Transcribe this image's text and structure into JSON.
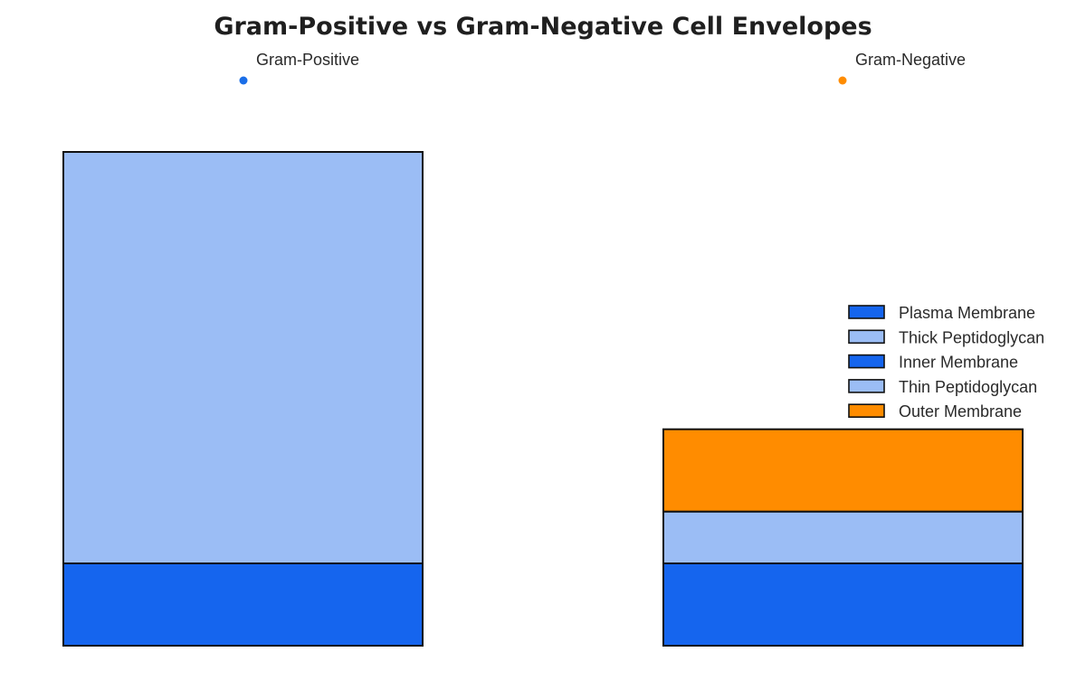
{
  "chart_data": {
    "type": "bar",
    "stacked": true,
    "title": "Gram-Positive vs Gram-Negative Cell Envelopes",
    "xlabel": "",
    "ylabel": "",
    "ylim": [
      0,
      60
    ],
    "grid": false,
    "axes_visible": false,
    "legend_position": "right",
    "colors": {
      "membrane": "#1565EE",
      "peptidoglycan": "#9BBDF5",
      "outer_membrane": "#FF8C00",
      "outline": "#111111",
      "marker_positive": "#1A6EE8",
      "marker_negative": "#FF8C00"
    },
    "categories": [
      "Gram-Positive",
      "Gram-Negative"
    ],
    "series": [
      {
        "name": "Plasma Membrane",
        "color": "#1565EE",
        "values": [
          10,
          0
        ]
      },
      {
        "name": "Thick Peptidoglycan",
        "color": "#9BBDF5",
        "values": [
          50,
          0
        ]
      },
      {
        "name": "Inner Membrane",
        "color": "#1565EE",
        "values": [
          0,
          10
        ]
      },
      {
        "name": "Thin Peptidoglycan",
        "color": "#9BBDF5",
        "values": [
          0,
          6.3
        ]
      },
      {
        "name": "Outer Membrane",
        "color": "#FF8C00",
        "values": [
          0,
          10
        ]
      }
    ]
  }
}
